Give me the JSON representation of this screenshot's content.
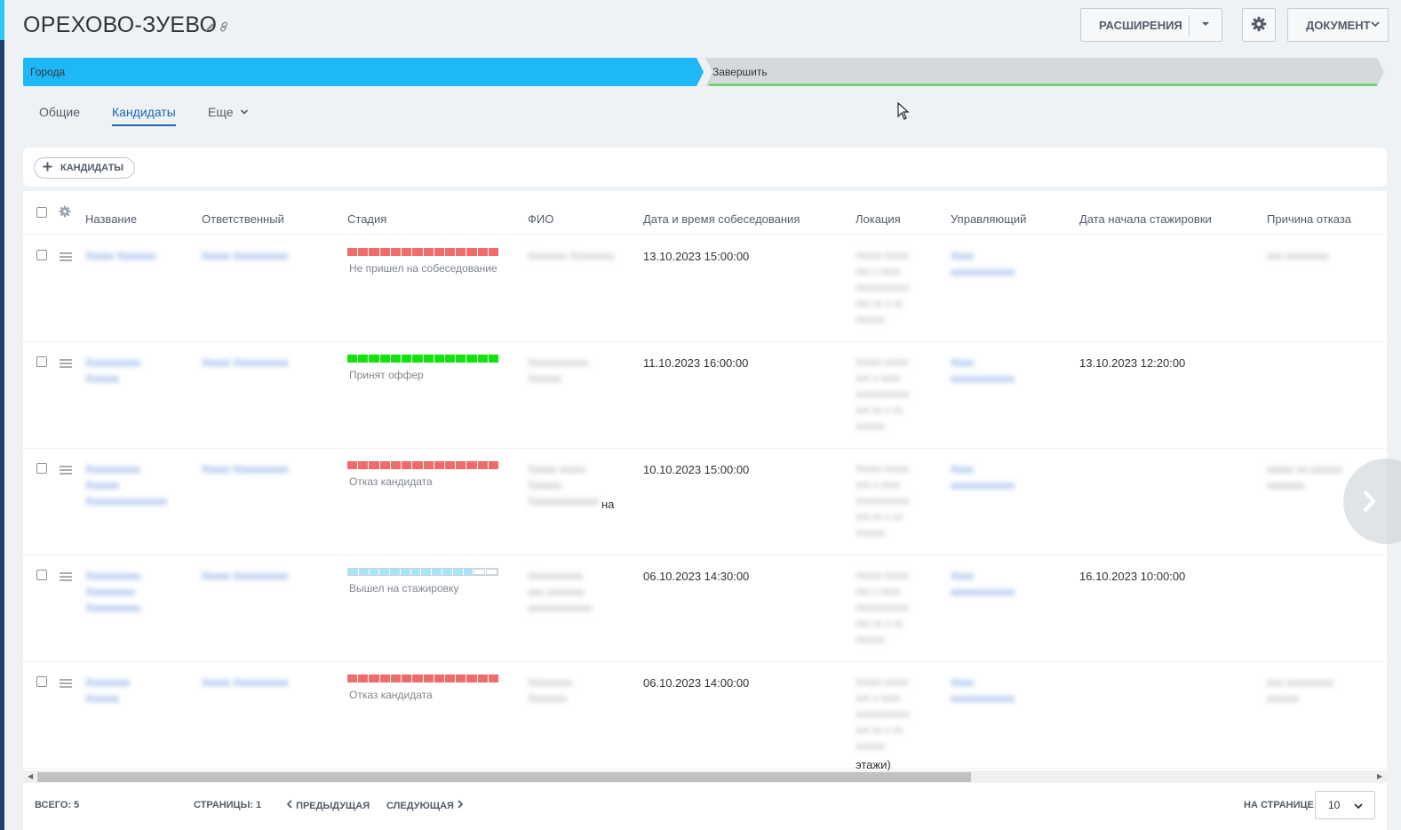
{
  "page": {
    "title": "ОРЕХОВО-ЗУЕВО",
    "title_icons": [
      "pencil-icon",
      "link-icon"
    ]
  },
  "header_buttons": {
    "extensions": "РАСШИРЕНИЯ",
    "document": "ДОКУМЕНТ",
    "icons": [
      "chevron-down-icon",
      "gear-icon"
    ]
  },
  "stages": [
    {
      "label": "Города",
      "color": "#1eb8f8"
    },
    {
      "label": "Завершить",
      "color": "#d5d9dd",
      "underline": "#44d544"
    }
  ],
  "tabs": [
    {
      "label": "Общие",
      "active": false
    },
    {
      "label": "Кандидаты",
      "active": true
    },
    {
      "label": "Еще",
      "active": false
    }
  ],
  "toolbar": {
    "add_label": "КАНДИДАТЫ",
    "add_icon": "plus-icon"
  },
  "columns": [
    "Название",
    "Ответственный",
    "Стадия",
    "ФИО",
    "Дата и время собеседования",
    "Локация",
    "Управляющий",
    "Дата начала стажировки",
    "Причина отказа"
  ],
  "rows": [
    {
      "name": [
        "Ххххх Ххххххх"
      ],
      "responsible": "Ххххх Хххххххххх",
      "stage": "Не пришел на собеседование",
      "stage_color": "#f26b6b",
      "stage_filled": 1,
      "fio": [
        "Ххххххх Хххххххх"
      ],
      "fio_tail": "",
      "interview": "13.10.2023 15:00:00",
      "location": [
        "Ххххх ххххх",
        "ххх х хххх",
        "ххххххххххх",
        "ххх хх х хх",
        "хххххх"
      ],
      "location_tail": "",
      "manager": [
        "Хххх",
        "хххххххххххх"
      ],
      "internship": "",
      "reason": [
        "ххх хххххххх"
      ]
    },
    {
      "name": [
        "Хххххххххх",
        "Хххххх"
      ],
      "responsible": "Ххххх Хххххххххх",
      "stage": "Принят оффер",
      "stage_color": "#10e40c",
      "stage_filled": 1,
      "fio": [
        "Ххххххххххх",
        "Хххххх"
      ],
      "fio_tail": "",
      "interview": "11.10.2023 16:00:00",
      "location": [
        "Ххххх ххххх",
        "ххх х хххх",
        "ххххххххххх",
        "ххх хх х хх",
        "хххххх"
      ],
      "location_tail": "",
      "manager": [
        "Хххх",
        "хххххххххххх"
      ],
      "internship": "13.10.2023 12:20:00",
      "reason": []
    },
    {
      "name": [
        "Хххххххххх",
        "Хххххх",
        "Ххххххххххххххх"
      ],
      "responsible": "Ххххх Хххххххххх",
      "stage": "Отказ кандидата",
      "stage_color": "#f26b6b",
      "stage_filled": 1,
      "fio": [
        "Ххххх ххххх",
        "Хххххх",
        "Ххххххххххххх"
      ],
      "fio_tail": "на",
      "interview": "10.10.2023 15:00:00",
      "location": [
        "Ххххх ххххх",
        "ххх х хххх",
        "ххххххххххх",
        "ххх хх х хх",
        "хххххх"
      ],
      "location_tail": "",
      "manager": [
        "Хххх",
        "хххххххххххх"
      ],
      "internship": "",
      "reason": [
        "ххххх хх хххххх",
        "ххххххх"
      ]
    },
    {
      "name": [
        "Хххххххххх",
        "Ххххххххх",
        "Хххххххххх"
      ],
      "responsible": "Ххххх Хххххххххх",
      "stage": "Вышел на стажировку",
      "stage_color": "#a8e3f7",
      "stage_filled": 0.88,
      "fio": [
        "Хххххххххх",
        "ххх ххххххх",
        "хххххххххххх"
      ],
      "fio_tail": "",
      "interview": "06.10.2023 14:30:00",
      "location": [
        "Ххххх ххххх",
        "ххх х хххх",
        "ххххххххххх",
        "ххх хх х хх",
        "хххххх"
      ],
      "location_tail": "",
      "manager": [
        "Хххх",
        "хххххххххххх"
      ],
      "internship": "16.10.2023 10:00:00",
      "reason": []
    },
    {
      "name": [
        "Хххххххх",
        "Хххххх"
      ],
      "responsible": "Ххххх Хххххххххх",
      "stage": "Отказ кандидата",
      "stage_color": "#f26b6b",
      "stage_filled": 1,
      "fio": [
        "Хххххххх",
        "Ххххххх"
      ],
      "fio_tail": "",
      "interview": "06.10.2023 14:00:00",
      "location": [
        "Ххххх ххххх",
        "ххх х хххх",
        "ххххххххххх",
        "ххх хх х хх",
        "хххххх"
      ],
      "location_tail": "этажи)",
      "manager": [
        "Хххх",
        "хххххххххххх"
      ],
      "internship": "",
      "reason": [
        "ххх ххххххххх",
        "хххххх"
      ]
    }
  ],
  "footer": {
    "total_label": "ВСЕГО: 5",
    "pages_label": "СТРАНИЦЫ:",
    "pages_value": "1",
    "prev": "ПРЕДЫДУЩАЯ",
    "next": "СЛЕДУЮЩАЯ",
    "per_page_label": "НА СТРАНИЦЕ:",
    "per_page_value": "10"
  }
}
